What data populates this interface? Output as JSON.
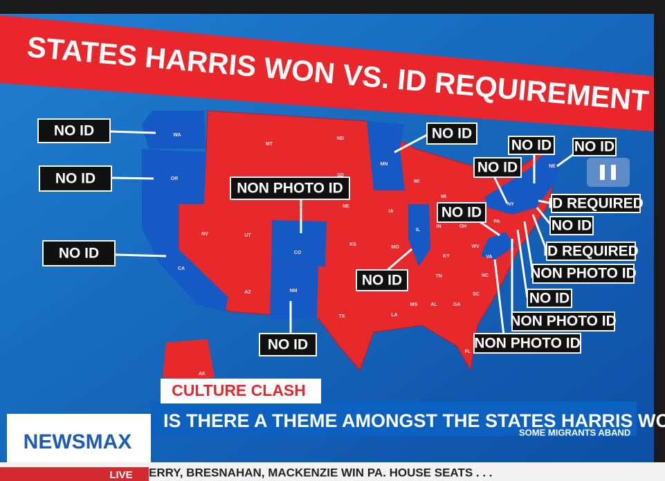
{
  "header": {
    "title": "STATES HARRIS WON VS. ID REQUIREMENT"
  },
  "map": {
    "state_labels": [
      "WA",
      "OR",
      "CA",
      "NV",
      "UT",
      "AZ",
      "MT",
      "ND",
      "SD",
      "NE",
      "KS",
      "CO",
      "NM",
      "TX",
      "MN",
      "IA",
      "MO",
      "IL",
      "WI",
      "MI",
      "IN",
      "OH",
      "KY",
      "TN",
      "MS",
      "AL",
      "GA",
      "SC",
      "NC",
      "VA",
      "WV",
      "PA",
      "NY",
      "NE",
      "LA",
      "FL",
      "AK"
    ],
    "callouts": [
      "NO ID",
      "NO ID",
      "NO ID",
      "NON PHOTO ID",
      "NO ID",
      "NO ID",
      "NO ID",
      "NO ID",
      "NO ID",
      "NO ID",
      "NO ID",
      "ID REQUIRED",
      "NO ID",
      "ID REQUIRED",
      "NON PHOTO ID",
      "NO ID",
      "NON PHOTO ID",
      "NON PHOTO ID"
    ]
  },
  "lower_third": {
    "tag": "CULTURE CLASH",
    "headline": "IS THERE A THEME AMONGST THE STATES HARRIS WON?",
    "ticker_right": "SOME MIGRANTS ABAND",
    "logo": "NEWSMAX",
    "live": "LIVE",
    "ticker": "ERRY, BRESNAHAN, MACKENZIE WIN PA. HOUSE SEATS . . ."
  }
}
